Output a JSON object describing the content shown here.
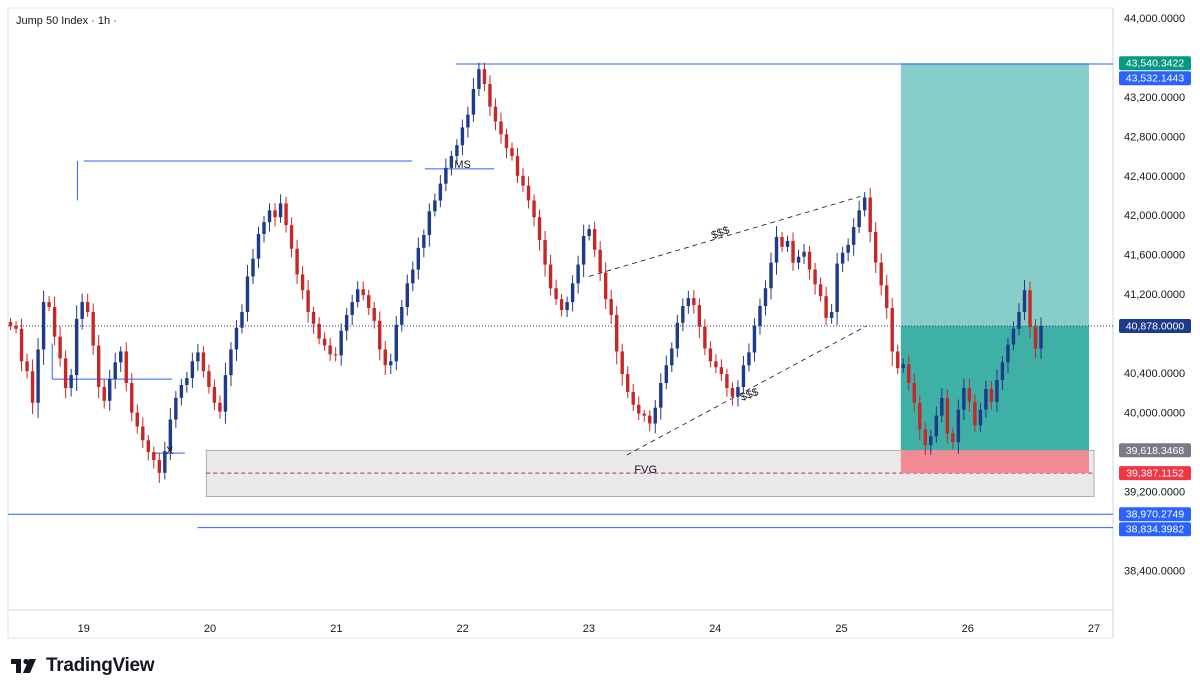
{
  "header": {
    "title": "Jump 50 Index · 1h ·"
  },
  "brand": {
    "name": "TradingView",
    "logo_icon": "tradingview-logo-icon"
  },
  "colors": {
    "up": "#1e3a8a",
    "down": "#c62828",
    "blue_line": "#2962ff",
    "target_zone": "#80cbc4",
    "filled_zone": "#26a69a",
    "stop_zone": "#f28b94",
    "fvg_zone": "#e0e0e0",
    "price_tag_blue": "#2962ff",
    "price_tag_green": "#089981",
    "price_tag_red": "#f23645",
    "price_tag_grey": "#787b86",
    "last_price_tag": "#1e3a8a"
  },
  "chart_data": {
    "type": "candlestick",
    "symbol": "Jump 50 Index",
    "timeframe": "1h",
    "y_ticks": [
      "44,000.0000",
      "43,200.0000",
      "42,800.0000",
      "42,400.0000",
      "42,000.0000",
      "41,600.0000",
      "41,200.0000",
      "40,400.0000",
      "40,000.0000",
      "39,200.0000",
      "38,400.0000"
    ],
    "x_ticks": [
      {
        "day": 19,
        "label": "19"
      },
      {
        "day": 20,
        "label": "20"
      },
      {
        "day": 21,
        "label": "21"
      },
      {
        "day": 22,
        "label": "22"
      },
      {
        "day": 23,
        "label": "23"
      },
      {
        "day": 24,
        "label": "24"
      },
      {
        "day": 25,
        "label": "25"
      },
      {
        "day": 26,
        "label": "26"
      },
      {
        "day": 27,
        "label": "27"
      }
    ],
    "ylim": [
      38000,
      44100
    ],
    "xlim": [
      18.4,
      27.15
    ],
    "price_labels": [
      {
        "value": 43540.3422,
        "label": "43,540.3422",
        "color": "green"
      },
      {
        "value": 43532.1443,
        "label": "43,532.1443",
        "color": "blue"
      },
      {
        "value": 40878.0,
        "label": "40,878.0000",
        "color": "last"
      },
      {
        "value": 39618.3468,
        "label": "39,618.3468",
        "color": "grey"
      },
      {
        "value": 39387.1152,
        "label": "39,387.1152",
        "color": "red"
      },
      {
        "value": 38970.2749,
        "label": "38,970.2749",
        "color": "blue"
      },
      {
        "value": 38834.3982,
        "label": "38,834.3982",
        "color": "blue"
      }
    ],
    "annotations": [
      {
        "text": "MS",
        "day": 22.0,
        "price": 42480
      },
      {
        "text": "X",
        "day": 19.68,
        "price": 39580
      },
      {
        "text": "FVG",
        "day": 23.45,
        "price": 39387
      },
      {
        "text": "$$$",
        "day": 24.05,
        "price": 41790
      },
      {
        "text": "$$$",
        "day": 24.28,
        "price": 40150
      }
    ],
    "position": {
      "day_start": 25.47,
      "day_end": 26.96,
      "entry": 39618.3468,
      "target": 43540.3422,
      "stop": 39387.1152,
      "current": 40878.0
    },
    "levels": [
      {
        "price": 43532.1443,
        "day_start": 21.95,
        "day_end": 27.15
      },
      {
        "price": 38970.2749,
        "day_start": 18.4,
        "day_end": 27.15
      },
      {
        "price": 38834.3982,
        "day_start": 19.9,
        "day_end": 27.15
      },
      {
        "price": 42550,
        "day_start": 19.0,
        "day_end": 21.6
      },
      {
        "price": 40340,
        "day_start": 18.75,
        "day_end": 19.7
      },
      {
        "price": 39590,
        "day_start": 19.55,
        "day_end": 19.8
      },
      {
        "price": 42470,
        "day_start": 21.7,
        "day_end": 22.25
      }
    ],
    "fvg_zone": {
      "day_start": 19.97,
      "day_end": 27.0,
      "top": 39618,
      "bottom": 39150,
      "mid": 39387
    },
    "channel": {
      "upper": [
        {
          "day": 23.0,
          "price": 41380
        },
        {
          "day": 25.15,
          "price": 42190
        }
      ],
      "lower": [
        {
          "day": 23.3,
          "price": 39570
        },
        {
          "day": 25.2,
          "price": 40880
        }
      ]
    },
    "closes": [
      40878,
      40850,
      40520,
      40420,
      40100,
      40640,
      41120,
      41070,
      40770,
      40550,
      40250,
      40380,
      40950,
      41120,
      41020,
      40680,
      40260,
      40120,
      40340,
      40510,
      40620,
      40300,
      40000,
      39860,
      39720,
      39600,
      39520,
      39390,
      39610,
      39930,
      40150,
      40280,
      40350,
      40520,
      40610,
      40420,
      40260,
      40100,
      40010,
      40380,
      40640,
      40860,
      41020,
      41380,
      41560,
      41810,
      41930,
      42050,
      41980,
      42120,
      41900,
      41660,
      41400,
      41240,
      41020,
      40900,
      40750,
      40680,
      40590,
      40580,
      40830,
      40990,
      41120,
      41250,
      41190,
      41060,
      40930,
      40640,
      40480,
      40520,
      40890,
      41070,
      41310,
      41450,
      41670,
      41800,
      42040,
      42150,
      42320,
      42480,
      42600,
      42710,
      42890,
      43020,
      43280,
      43480,
      43330,
      43100,
      42950,
      42820,
      42680,
      42600,
      42400,
      42300,
      42150,
      41980,
      41750,
      41500,
      41260,
      41150,
      41040,
      41120,
      41310,
      41500,
      41790,
      41860,
      41650,
      41420,
      41150,
      40990,
      40620,
      40390,
      40210,
      40080,
      39990,
      39970,
      39890,
      40050,
      40300,
      40480,
      40650,
      40910,
      41080,
      41160,
      41090,
      40870,
      40650,
      40520,
      40460,
      40390,
      40250,
      40160,
      40260,
      40480,
      40610,
      40880,
      41080,
      41260,
      41520,
      41780,
      41680,
      41740,
      41520,
      41580,
      41630,
      41450,
      41300,
      41180,
      40960,
      41020,
      41510,
      41620,
      41700,
      41880,
      42050,
      42180,
      41830,
      41520,
      41290,
      41060,
      40620,
      40450,
      40490,
      40300,
      40100,
      39830,
      39670,
      39760,
      39970,
      40150,
      39790,
      39700,
      40030,
      40250,
      40110,
      39870,
      40030,
      40240,
      40110,
      40330,
      40510,
      40690,
      40850,
      41020,
      41240,
      40870,
      40650,
      40878
    ]
  }
}
